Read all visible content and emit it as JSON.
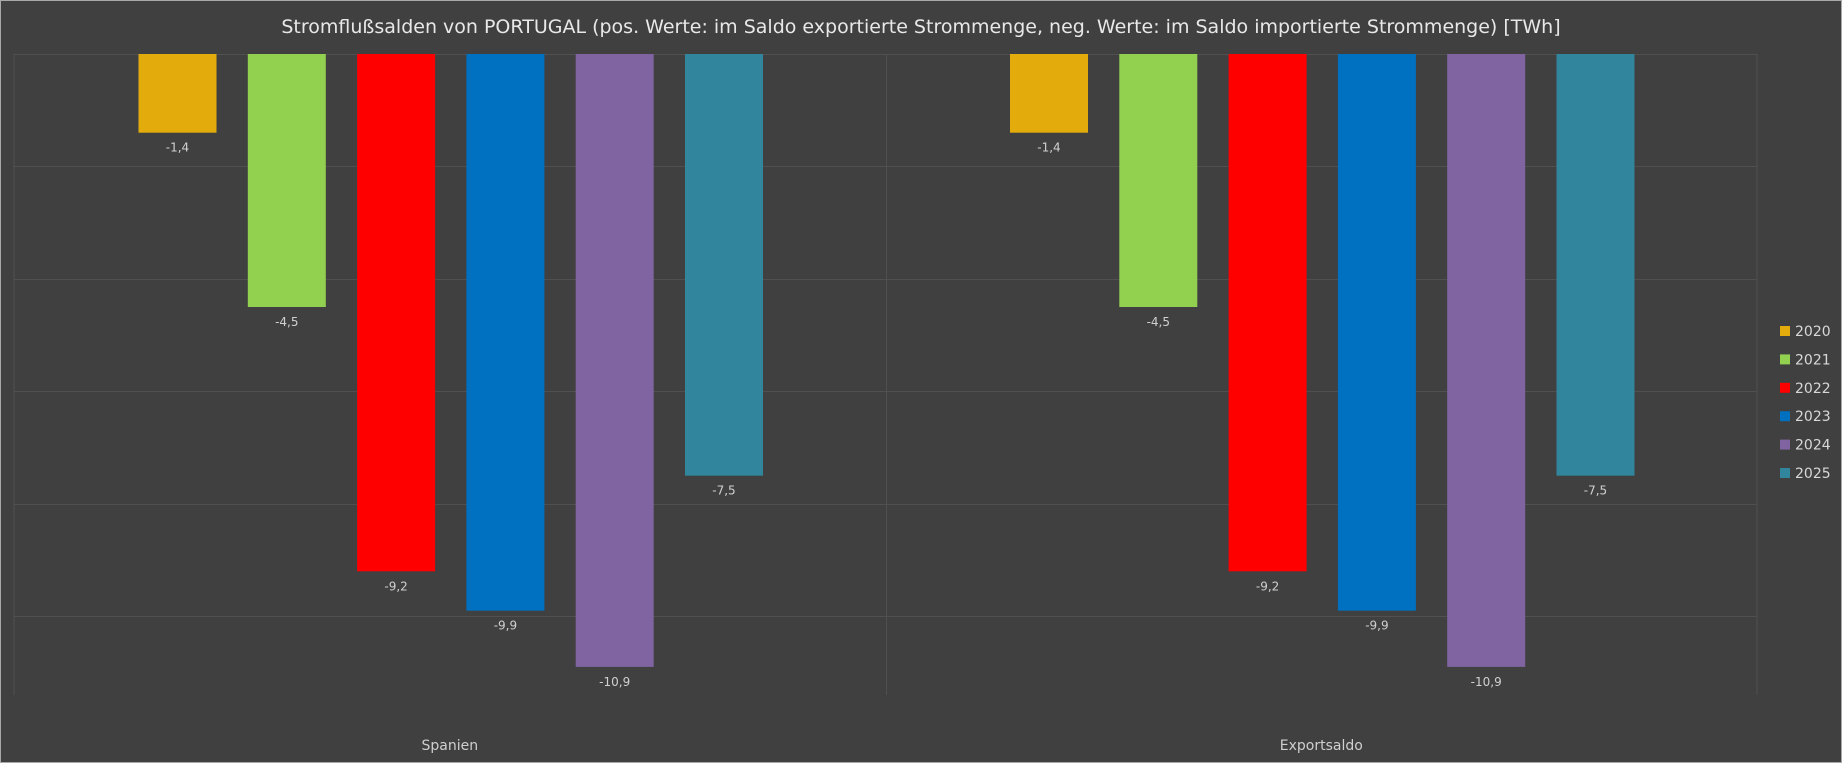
{
  "chart_data": {
    "type": "bar",
    "title": "Stromflußsalden von PORTUGAL (pos. Werte: im Saldo exportierte Strommenge, neg. Werte: im Saldo importierte Strommenge) [TWh]",
    "xlabel": "",
    "ylabel": "",
    "categories": [
      "Spanien",
      "Exportsaldo"
    ],
    "series": [
      {
        "name": "2020",
        "color": "#e3ac0c",
        "values": [
          -1.4,
          -1.4
        ],
        "labels": [
          "-1,4",
          "-1,4"
        ]
      },
      {
        "name": "2021",
        "color": "#92d050",
        "values": [
          -4.5,
          -4.5
        ],
        "labels": [
          "-4,5",
          "-4,5"
        ]
      },
      {
        "name": "2022",
        "color": "#ff0000",
        "values": [
          -9.2,
          -9.2
        ],
        "labels": [
          "-9,2",
          "-9,2"
        ]
      },
      {
        "name": "2023",
        "color": "#0070c0",
        "values": [
          -9.9,
          -9.9
        ],
        "labels": [
          "-9,9",
          "-9,9"
        ]
      },
      {
        "name": "2024",
        "color": "#8064a2",
        "values": [
          -10.9,
          -10.9
        ],
        "labels": [
          "-10,9",
          "-10,9"
        ]
      },
      {
        "name": "2025",
        "color": "#31859c",
        "values": [
          -7.5,
          -7.5
        ],
        "labels": [
          "-7,5",
          "-7,5"
        ]
      }
    ],
    "ylim": [
      -11.4,
      0
    ],
    "gridlines": [
      0,
      -2,
      -4,
      -6,
      -8,
      -10
    ],
    "grid": true,
    "y_axis_labels_shown": false,
    "legend_position": "right"
  },
  "colors": {
    "background": "#404040",
    "gridline": "#505050",
    "text": "#d8d8d8"
  }
}
